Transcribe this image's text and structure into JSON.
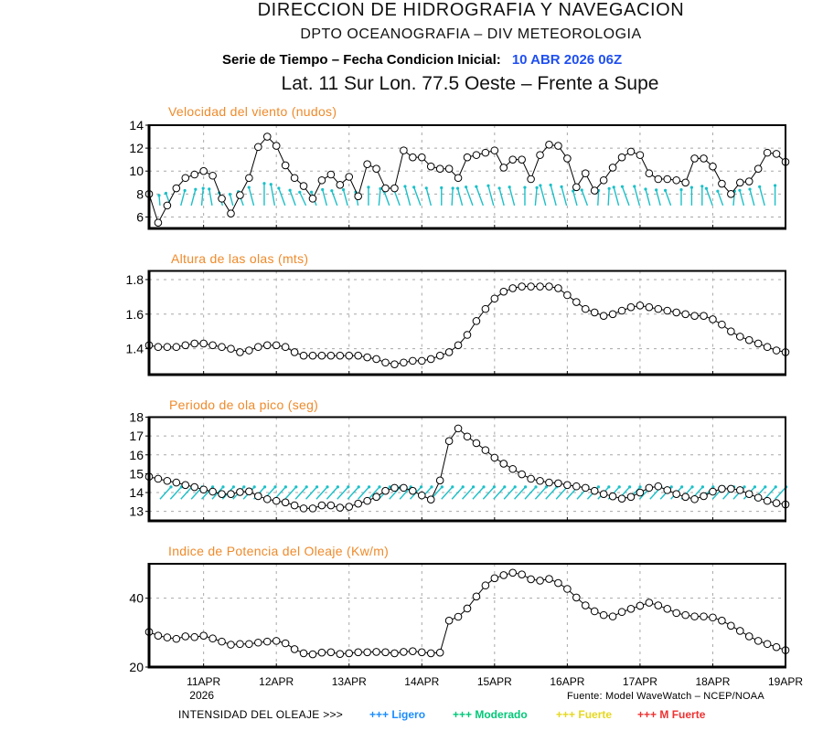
{
  "header": {
    "org": "DIRECCION DE HIDROGRAFIA Y NAVEGACION",
    "dept": "DPTO OCEANOGRAFIA – DIV METEOROLOGIA",
    "series_label": "Serie de Tiempo – Fecha Condicion Inicial:",
    "init_date": "10 ABR 2026 06Z",
    "location": "Lat. 11 Sur  Lon. 77.5 Oeste – Frente a Supe"
  },
  "colors": {
    "title_orange": "#ef8a2a",
    "init_date_blue": "#1f4ff0",
    "arrow_cyan": "#1cc0c8",
    "grid": "#a8a8a8",
    "series": "#000000"
  },
  "x_axis": {
    "start": "10APR2026 06Z",
    "end": "19APR2026 00Z",
    "range_hours": [
      0,
      210
    ],
    "step_hours": 3,
    "tick_hours": [
      18,
      42,
      66,
      90,
      114,
      138,
      162,
      186,
      210
    ],
    "tick_labels": [
      "11APR",
      "12APR",
      "13APR",
      "14APR",
      "15APR",
      "16APR",
      "17APR",
      "18APR",
      "19APR"
    ],
    "year_label": "2026"
  },
  "chart_data": [
    {
      "id": "wind_speed",
      "type": "line",
      "title": "Velocidad del viento (nudos)",
      "xlabel": "",
      "ylabel": "nudos",
      "ylim": [
        5,
        14
      ],
      "yticks": [
        6,
        8,
        10,
        12,
        14
      ],
      "ytick_labels": [
        "6",
        "8",
        "10",
        "12",
        "14"
      ],
      "grid": true,
      "marker": "open-circle",
      "values": [
        8.0,
        5.5,
        7.0,
        8.5,
        9.4,
        9.7,
        10.0,
        9.6,
        7.6,
        6.3,
        7.9,
        9.4,
        12.1,
        13.0,
        12.2,
        10.5,
        9.4,
        8.7,
        7.6,
        9.2,
        9.7,
        8.8,
        9.5,
        7.8,
        10.6,
        10.2,
        8.5,
        8.5,
        11.8,
        11.2,
        11.2,
        10.4,
        10.2,
        10.2,
        9.4,
        11.2,
        11.4,
        11.6,
        11.8,
        10.3,
        11.0,
        11.0,
        9.3,
        11.4,
        12.3,
        12.2,
        11.1,
        8.6,
        9.8,
        8.3,
        9.2,
        10.3,
        11.2,
        11.7,
        11.4,
        9.8,
        9.3,
        9.3,
        9.2,
        9.0,
        11.1,
        11.1,
        10.4,
        8.9,
        8.0,
        9.0,
        9.1,
        10.2,
        11.6,
        11.5,
        10.8
      ],
      "direction_arrows": {
        "name": "wind-direction",
        "anchor_value": 7.0,
        "start_hour": 3.6,
        "step_hours": 3.44,
        "bearing_deg": [
          -5,
          -20,
          15,
          15,
          5,
          -10,
          -15,
          -15,
          -20,
          -15,
          0,
          -10,
          -20,
          -20,
          -25,
          -20,
          -15,
          -20,
          -15,
          -10,
          0,
          5,
          -20,
          -20,
          -15,
          -20,
          -15,
          0,
          3,
          -15,
          -20,
          -20,
          -15,
          -15,
          -15,
          0,
          5,
          -15,
          -15,
          -15,
          -15,
          -20,
          3,
          3,
          -15,
          -20,
          -15,
          -15,
          -15,
          -20,
          0,
          0,
          0,
          -20,
          -20,
          5,
          -15,
          -15,
          -15,
          0
        ]
      }
    },
    {
      "id": "wave_height",
      "type": "line",
      "title": "Altura de las olas (mts)",
      "xlabel": "",
      "ylabel": "mts",
      "ylim": [
        1.25,
        1.85
      ],
      "yticks": [
        1.4,
        1.6,
        1.8
      ],
      "ytick_labels": [
        "1.4",
        "1.6",
        "1.8"
      ],
      "grid": true,
      "marker": "open-circle",
      "values": [
        1.42,
        1.41,
        1.41,
        1.41,
        1.42,
        1.43,
        1.43,
        1.42,
        1.41,
        1.4,
        1.38,
        1.39,
        1.41,
        1.42,
        1.42,
        1.41,
        1.38,
        1.36,
        1.36,
        1.36,
        1.36,
        1.36,
        1.36,
        1.36,
        1.35,
        1.34,
        1.32,
        1.31,
        1.32,
        1.33,
        1.33,
        1.34,
        1.36,
        1.38,
        1.42,
        1.48,
        1.56,
        1.63,
        1.69,
        1.73,
        1.75,
        1.76,
        1.76,
        1.76,
        1.76,
        1.75,
        1.71,
        1.67,
        1.63,
        1.61,
        1.59,
        1.6,
        1.62,
        1.64,
        1.65,
        1.64,
        1.63,
        1.62,
        1.61,
        1.6,
        1.59,
        1.59,
        1.57,
        1.54,
        1.5,
        1.47,
        1.45,
        1.43,
        1.41,
        1.39,
        1.38
      ]
    },
    {
      "id": "peak_period",
      "type": "line",
      "title": "Periodo de ola pico (seg)",
      "xlabel": "",
      "ylabel": "seg",
      "ylim": [
        12.5,
        18
      ],
      "yticks": [
        13,
        14,
        15,
        16,
        17,
        18
      ],
      "ytick_labels": [
        "13",
        "14",
        "15",
        "16",
        "17",
        "18"
      ],
      "grid": true,
      "marker": "open-circle",
      "values": [
        14.84,
        14.73,
        14.62,
        14.53,
        14.4,
        14.29,
        14.16,
        14.05,
        13.92,
        13.92,
        14.03,
        14.06,
        13.81,
        13.65,
        13.56,
        13.48,
        13.32,
        13.16,
        13.16,
        13.32,
        13.32,
        13.2,
        13.25,
        13.41,
        13.56,
        13.77,
        14.09,
        14.25,
        14.25,
        14.09,
        13.85,
        13.63,
        14.64,
        16.73,
        17.4,
        16.97,
        16.62,
        16.25,
        15.85,
        15.53,
        15.25,
        14.97,
        14.73,
        14.62,
        14.53,
        14.49,
        14.4,
        14.33,
        14.25,
        14.09,
        13.92,
        13.8,
        13.68,
        13.77,
        14.0,
        14.25,
        14.33,
        14.13,
        13.92,
        13.77,
        13.65,
        13.81,
        14.05,
        14.2,
        14.2,
        14.13,
        13.92,
        13.73,
        13.56,
        13.44,
        13.37
      ],
      "direction_arrows": {
        "name": "wave-direction",
        "anchor_value": 13.65,
        "start_hour": 3.6,
        "step_hours": 3.44,
        "bearing_deg": [
          42,
          42,
          42,
          42,
          42,
          42,
          42,
          42,
          42,
          42,
          42,
          42,
          42,
          42,
          42,
          42,
          42,
          42,
          42,
          42,
          42,
          42,
          42,
          42,
          42,
          42,
          42,
          42,
          42,
          42,
          42,
          42,
          42,
          42,
          42,
          42,
          42,
          42,
          42,
          42,
          42,
          42,
          42,
          42,
          42,
          42,
          42,
          42,
          42,
          42,
          42,
          42,
          42,
          42,
          42,
          42,
          42,
          42,
          42,
          42
        ]
      }
    },
    {
      "id": "wave_power",
      "type": "line",
      "title": "Indice de Potencia del Oleaje (Kw/m)",
      "xlabel": "",
      "ylabel": "Kw/m",
      "ylim": [
        20,
        50
      ],
      "yticks": [
        20,
        40
      ],
      "ytick_labels": [
        "20",
        "40"
      ],
      "grid": true,
      "marker": "open-circle",
      "values": [
        30.2,
        29.1,
        28.6,
        28.2,
        28.9,
        28.7,
        29.1,
        28.3,
        27.4,
        26.5,
        26.7,
        26.7,
        27.1,
        27.4,
        27.6,
        26.9,
        25.2,
        24.0,
        23.7,
        24.2,
        24.3,
        23.8,
        24.0,
        24.3,
        24.3,
        24.4,
        24.3,
        24.0,
        24.4,
        24.6,
        24.3,
        24.0,
        24.2,
        33.5,
        34.6,
        37.0,
        40.5,
        43.7,
        45.8,
        46.7,
        47.4,
        46.9,
        45.5,
        45.1,
        45.6,
        44.4,
        42.7,
        40.2,
        37.9,
        36.2,
        35.1,
        34.7,
        36.0,
        36.9,
        37.8,
        38.7,
        37.9,
        36.9,
        35.7,
        35.1,
        34.7,
        34.7,
        34.4,
        33.5,
        32.0,
        30.5,
        28.9,
        27.6,
        26.7,
        25.8,
        24.9
      ]
    }
  ],
  "footer": {
    "source": "Fuente: Model WaveWatch – NCEP/NOAA",
    "legend_title": "INTENSIDAD DEL OLEAJE >>>",
    "legend": [
      {
        "label": "+++ Ligero",
        "color": "#1a8cff"
      },
      {
        "label": "+++ Moderado",
        "color": "#00c878"
      },
      {
        "label": "+++ Fuerte",
        "color": "#e6d820"
      },
      {
        "label": "+++ M Fuerte",
        "color": "#f03030"
      }
    ]
  }
}
